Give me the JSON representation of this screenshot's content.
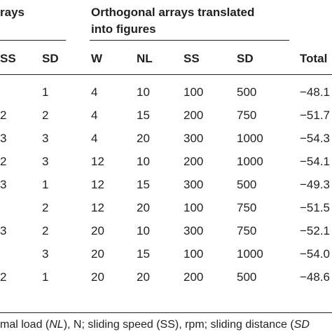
{
  "table": {
    "group_headers": {
      "left_fragment": "rays",
      "right_line1": "Orthogonal arrays translated",
      "right_line2": "into figures"
    },
    "columns": [
      "SS",
      "SD",
      "W",
      "NL",
      "SS",
      "SD",
      "Total"
    ],
    "rows": [
      [
        "",
        "1",
        "4",
        "10",
        "100",
        "500",
        "−48.1"
      ],
      [
        "2",
        "2",
        "4",
        "15",
        "200",
        "750",
        "−51.7"
      ],
      [
        "3",
        "3",
        "4",
        "20",
        "300",
        "1000",
        "−54.3"
      ],
      [
        "2",
        "3",
        "12",
        "10",
        "200",
        "1000",
        "−54.1"
      ],
      [
        "3",
        "1",
        "12",
        "15",
        "300",
        "500",
        "−49.3"
      ],
      [
        "",
        "2",
        "12",
        "20",
        "100",
        "750",
        "−51.5"
      ],
      [
        "3",
        "2",
        "20",
        "10",
        "300",
        "750",
        "−52.1"
      ],
      [
        "",
        "3",
        "20",
        "15",
        "100",
        "1000",
        "−54.0"
      ],
      [
        "2",
        "1",
        "20",
        "20",
        "200",
        "500",
        "−48.6"
      ]
    ]
  },
  "footnote": {
    "seg1": "mal load (",
    "seg2": "NL",
    "seg3": "), N; sliding speed (SS), rpm; sliding distance (",
    "seg4": "SD"
  }
}
